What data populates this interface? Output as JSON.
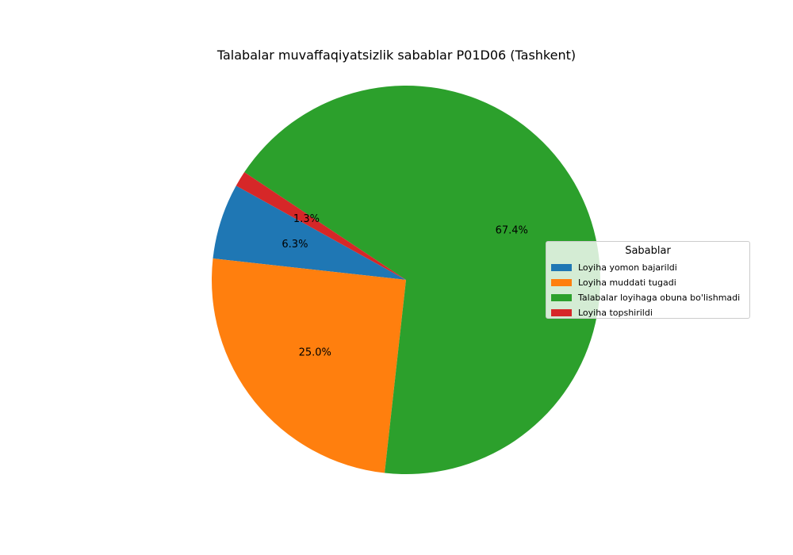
{
  "chart_data": {
    "type": "pie",
    "title": "Talabalar muvaffaqiyatsizlik sabablar P01D06 (Tashkent)",
    "legend_title": "Sabablar",
    "legend_position": "right",
    "slices": [
      {
        "label": "Loyiha yomon bajarildi",
        "value": 6.3,
        "pct_label": "6.3%",
        "color": "#1f77b4"
      },
      {
        "label": "Loyiha muddati tugadi",
        "value": 25.0,
        "pct_label": "25.0%",
        "color": "#ff7f0e"
      },
      {
        "label": "Talabalar loyihaga obuna bo'lishmadi",
        "value": 67.4,
        "pct_label": "67.4%",
        "color": "#2ca02c"
      },
      {
        "label": "Loyiha topshirildi",
        "value": 1.3,
        "pct_label": "1.3%",
        "color": "#d62728"
      }
    ]
  }
}
